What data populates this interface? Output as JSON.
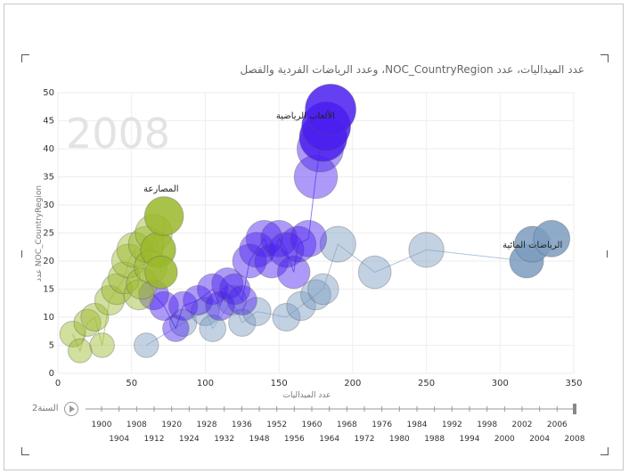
{
  "title": "عدد الميداليات، عدد NOC_CountryRegion، وعدد الرياضات الفردية والفصل",
  "watermark_year": "2008",
  "play_axis": {
    "label": "السنة2",
    "years": [
      1900,
      1904,
      1908,
      1912,
      1920,
      1924,
      1928,
      1932,
      1936,
      1948,
      1952,
      1956,
      1960,
      1964,
      1968,
      1972,
      1976,
      1980,
      1984,
      1988,
      1992,
      1994,
      1998,
      2000,
      2002,
      2004,
      2006,
      2008
    ],
    "current": 2008
  },
  "chart_data": {
    "type": "scatter",
    "title": "عدد الميداليات، عدد NOC_CountryRegion، وعدد الرياضات الفردية والفصل",
    "xlabel": "عدد الميداليات",
    "ylabel": "عدد NOC_CountryRegion",
    "xlim": [
      0,
      350
    ],
    "ylim": [
      0,
      50
    ],
    "xticks": [
      0,
      50,
      100,
      150,
      200,
      250,
      300,
      350
    ],
    "yticks": [
      0,
      5,
      10,
      15,
      20,
      25,
      30,
      35,
      40,
      45,
      50
    ],
    "grid": true,
    "series": [
      {
        "name": "الرياضات المائية",
        "color": "#7b9cc0",
        "label_at": [
          322,
          23
        ],
        "points": [
          [
            60,
            5
          ],
          [
            85,
            9
          ],
          [
            100,
            11
          ],
          [
            105,
            8
          ],
          [
            118,
            13
          ],
          [
            125,
            9
          ],
          [
            135,
            11
          ],
          [
            155,
            10
          ],
          [
            165,
            12
          ],
          [
            175,
            14
          ],
          [
            180,
            15
          ],
          [
            190,
            23
          ],
          [
            215,
            18
          ],
          [
            250,
            22
          ],
          [
            318,
            20
          ],
          [
            322,
            23
          ],
          [
            335,
            24
          ]
        ]
      },
      {
        "name": "الألعاب الرياضية",
        "color": "#4a1ff0",
        "label_at": [
          168,
          46
        ],
        "points": [
          [
            65,
            14
          ],
          [
            72,
            12
          ],
          [
            80,
            8
          ],
          [
            85,
            12
          ],
          [
            95,
            13
          ],
          [
            105,
            15
          ],
          [
            110,
            12
          ],
          [
            115,
            16
          ],
          [
            120,
            15
          ],
          [
            125,
            13
          ],
          [
            130,
            20
          ],
          [
            135,
            22
          ],
          [
            140,
            24
          ],
          [
            145,
            20
          ],
          [
            150,
            24
          ],
          [
            155,
            22
          ],
          [
            160,
            18
          ],
          [
            163,
            23
          ],
          [
            170,
            24
          ],
          [
            175,
            35
          ],
          [
            178,
            40
          ],
          [
            180,
            42
          ],
          [
            182,
            44
          ],
          [
            185,
            47
          ]
        ]
      },
      {
        "name": "المصارعة",
        "color": "#9ab82a",
        "label_at": [
          70,
          33
        ],
        "points": [
          [
            10,
            7
          ],
          [
            15,
            4
          ],
          [
            20,
            9
          ],
          [
            25,
            10
          ],
          [
            30,
            5
          ],
          [
            35,
            13
          ],
          [
            40,
            15
          ],
          [
            45,
            17
          ],
          [
            48,
            20
          ],
          [
            52,
            22
          ],
          [
            55,
            14
          ],
          [
            57,
            16
          ],
          [
            60,
            23
          ],
          [
            63,
            19
          ],
          [
            65,
            25
          ],
          [
            68,
            22
          ],
          [
            70,
            18
          ],
          [
            72,
            28
          ]
        ]
      }
    ]
  }
}
